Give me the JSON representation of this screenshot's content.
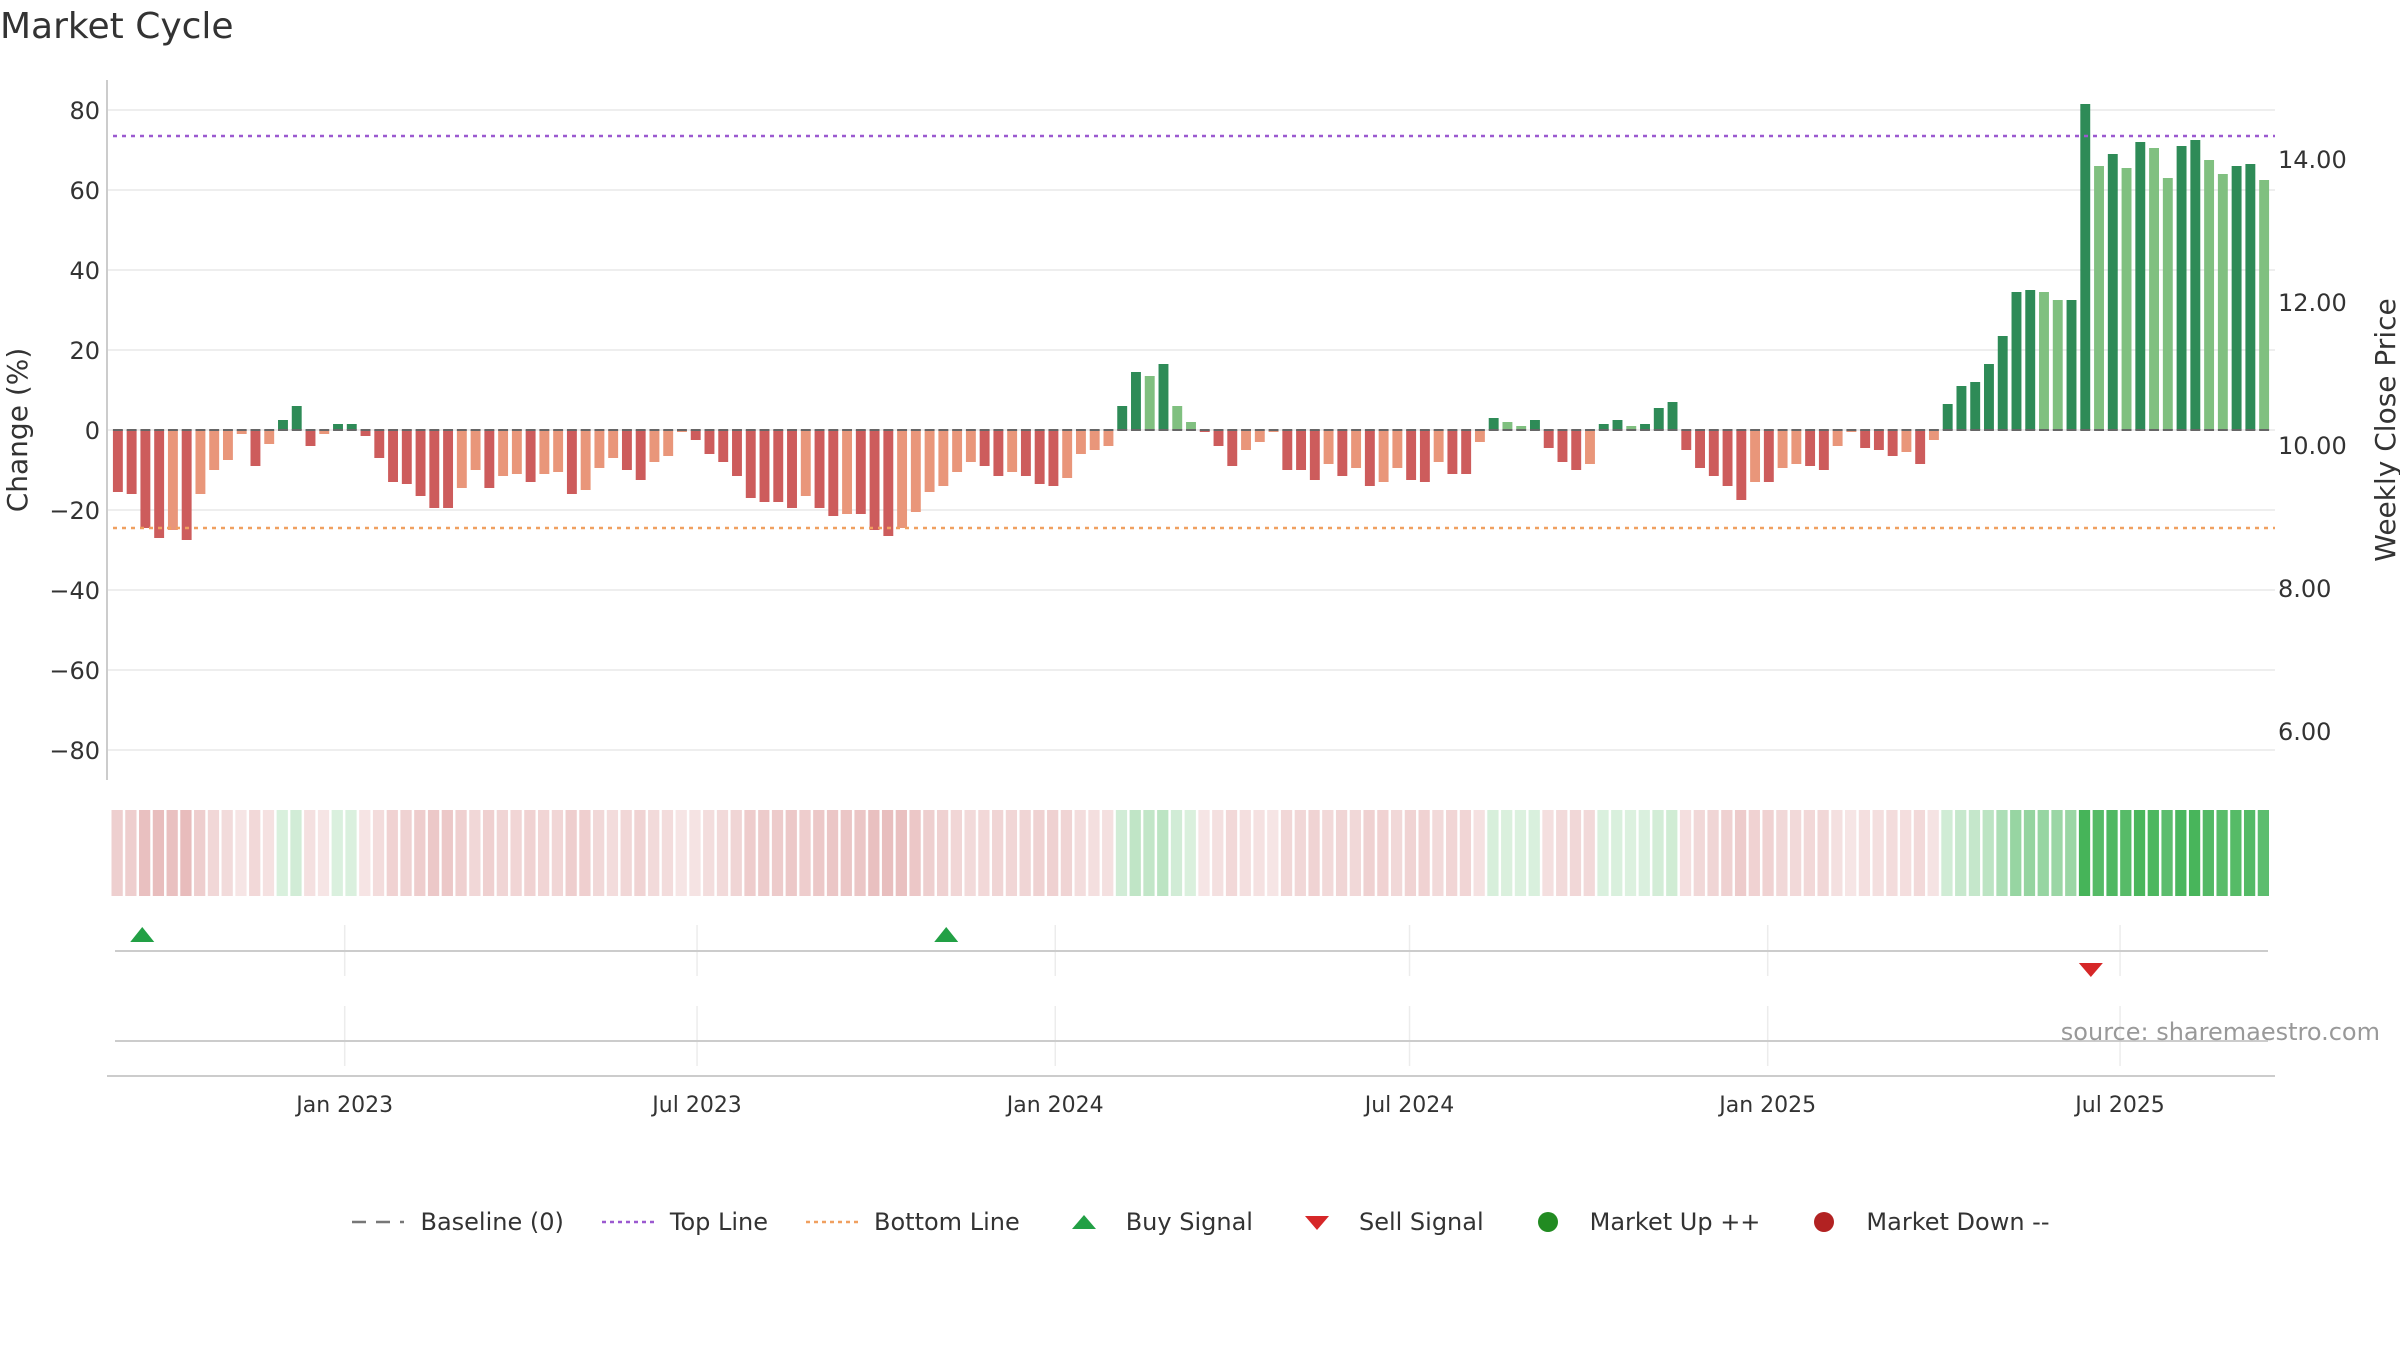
{
  "title": "Market Cycle",
  "source_text": "source: sharemaestro.com",
  "legend": [
    {
      "label": "Baseline (0)",
      "icon": "dashed-line-icon",
      "color": "#777777"
    },
    {
      "label": "Top Line",
      "icon": "dotted-line-icon",
      "color": "#9b59d0"
    },
    {
      "label": "Bottom Line",
      "icon": "dotted-line-icon",
      "color": "#f0a060"
    },
    {
      "label": "Buy Signal",
      "icon": "triangle-up-icon",
      "color": "#22a045"
    },
    {
      "label": "Sell Signal",
      "icon": "triangle-down-icon",
      "color": "#d62728"
    },
    {
      "label": "Market Up ++",
      "icon": "circle-icon",
      "color": "#228b22"
    },
    {
      "label": "Market Down --",
      "icon": "circle-icon",
      "color": "#b22222"
    }
  ],
  "chart_data": {
    "type": "bar",
    "ylabel": "Change (%)",
    "y2label": "Weekly Close Price",
    "ylim": [
      -88,
      88
    ],
    "yticks": [
      80,
      60,
      40,
      20,
      0,
      -20,
      -40,
      -60,
      -80
    ],
    "ytick_labels": [
      "80",
      "60",
      "40",
      "20",
      "0",
      "−20",
      "−40",
      "−60",
      "−80"
    ],
    "y2lim": [
      4.95,
      15.4
    ],
    "y2ticks": [
      14,
      12,
      10,
      8,
      6
    ],
    "y2tick_labels": [
      "14.00",
      "12.00",
      "10.00",
      "8.00",
      "6.00"
    ],
    "x_start": "2022-09-05",
    "x_end": "2025-09-15",
    "xticks": [
      "2023-01-01",
      "2023-07-01",
      "2024-01-01",
      "2024-07-01",
      "2025-01-01",
      "2025-07-01"
    ],
    "xtick_labels": [
      "Jan 2023",
      "Jul 2023",
      "Jan 2024",
      "Jul 2024",
      "Jan 2025",
      "Jul 2025"
    ],
    "top_line": 73.5,
    "bottom_line": -24.5,
    "baseline": 0,
    "values": [
      -15.5,
      -16,
      -24.5,
      -27,
      -25,
      -27.5,
      -16,
      -10,
      -7.5,
      -1,
      -9,
      -3.5,
      2.5,
      6,
      -4,
      -1,
      1.5,
      1.5,
      -1.5,
      -7,
      -13,
      -13.5,
      -16.5,
      -19.5,
      -19.5,
      -14.5,
      -10,
      -14.5,
      -11.5,
      -11,
      -13,
      -11,
      -10.5,
      -16,
      -15,
      -9.5,
      -7,
      -10,
      -12.5,
      -8,
      -6.5,
      -0.5,
      -2.5,
      -6,
      -8,
      -11.5,
      -17,
      -18,
      -18,
      -19.5,
      -16.5,
      -19.5,
      -21.5,
      -21,
      -21,
      -25,
      -26.5,
      -24.5,
      -20.5,
      -15.5,
      -14,
      -10.5,
      -8,
      -9,
      -11.5,
      -10.5,
      -11.5,
      -13.5,
      -14,
      -12,
      -6,
      -5,
      -4,
      6,
      14.5,
      13.5,
      16.5,
      6,
      2,
      -0.5,
      -4,
      -9,
      -5,
      -3,
      -0.5,
      -10,
      -10,
      -12.5,
      -8.5,
      -11.5,
      -9.5,
      -14,
      -13,
      -9.5,
      -12.5,
      -13,
      -8,
      -11,
      -11,
      -3,
      3,
      2,
      1,
      2.5,
      -4.5,
      -8,
      -10,
      -8.5,
      1.5,
      2.5,
      1,
      1.5,
      5.5,
      7,
      -5,
      -9.5,
      -11.5,
      -14,
      -17.5,
      -13,
      -13,
      -9.5,
      -8.5,
      -9,
      -10,
      -4,
      -0.5,
      -4.5,
      -5,
      -6.5,
      -5.5,
      -8.5,
      -2.5,
      6.5,
      11,
      12,
      16.5,
      23.5,
      34.5,
      35,
      34.5,
      32.5,
      32.5,
      81.5,
      66,
      69,
      65.5,
      72,
      70.5,
      63,
      71,
      72.5,
      67.5,
      64,
      66,
      66.5,
      62.5
    ],
    "bar_colors": {
      "strong_up": "#2e8b57",
      "weak_up": "#80c080",
      "strong_down": "#cd5c5c",
      "weak_down": "#e9967a"
    },
    "heatmap_colors": {
      "up": "#3cb050",
      "down": "#cd6e6e"
    },
    "buy_signals": [
      "2022-09-19",
      "2023-11-06"
    ],
    "sell_signals": [
      "2025-06-16"
    ]
  }
}
